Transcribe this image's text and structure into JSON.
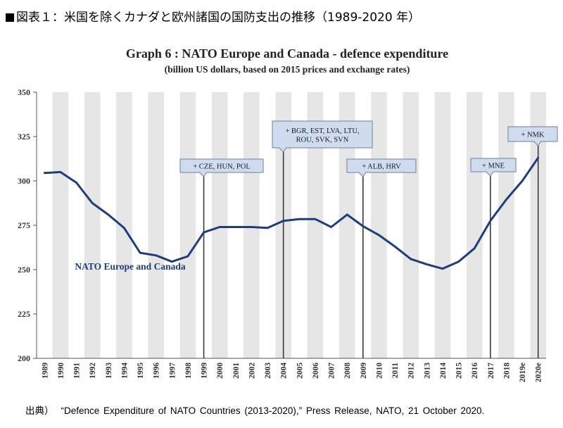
{
  "figure": {
    "title": "図表１：米国を除くカナダと欧州諸国の国防支出の推移（1989-2020 年）",
    "source_prefix": "出典）",
    "source_text": "“Defence Expenditure of NATO Countries (2013-2020),” Press Release, NATO, 21 October 2020."
  },
  "chart_data": {
    "type": "line",
    "title": "Graph 6 : NATO Europe and Canada - defence expenditure",
    "subtitle": "(billion US dollars, based on 2015 prices and exchange rates)",
    "xlabel": "",
    "ylabel": "",
    "ylim": [
      200,
      350
    ],
    "yticks": [
      "200",
      "225",
      "250",
      "275",
      "300",
      "325",
      "350"
    ],
    "grid": "alternating vertical bands",
    "categories": [
      "1989",
      "1990",
      "1991",
      "1992",
      "1993",
      "1994",
      "1995",
      "1996",
      "1997",
      "1998",
      "1999",
      "2000",
      "2001",
      "2002",
      "2003",
      "2004",
      "2005",
      "2006",
      "2007",
      "2008",
      "2009",
      "2010",
      "2011",
      "2012",
      "2013",
      "2014",
      "2015",
      "2016",
      "2017",
      "2018",
      "2019e",
      "2020e"
    ],
    "series": [
      {
        "name": "NATO Europe and Canada",
        "color": "#1f3d7a",
        "values": [
          304.5,
          305,
          299,
          287.5,
          281,
          273.5,
          259.5,
          258,
          254.5,
          257.5,
          271,
          274,
          274,
          274,
          273.5,
          277.5,
          278.5,
          278.5,
          274,
          281,
          274.5,
          269.5,
          263,
          256,
          253,
          250.5,
          254.5,
          262,
          277.5,
          289.5,
          300,
          313
        ]
      }
    ],
    "annotations": [
      {
        "category": "1999",
        "lines": [
          "+ CZE, HUN, POL"
        ]
      },
      {
        "category": "2004",
        "lines": [
          "+ BGR, EST, LVA, LTU,",
          "ROU, SVK, SVN"
        ]
      },
      {
        "category": "2009",
        "lines": [
          "+ ALB, HRV"
        ]
      },
      {
        "category": "2017",
        "lines": [
          "+ MNE"
        ]
      },
      {
        "category": "2020e",
        "lines": [
          "+ NMK"
        ]
      }
    ]
  }
}
